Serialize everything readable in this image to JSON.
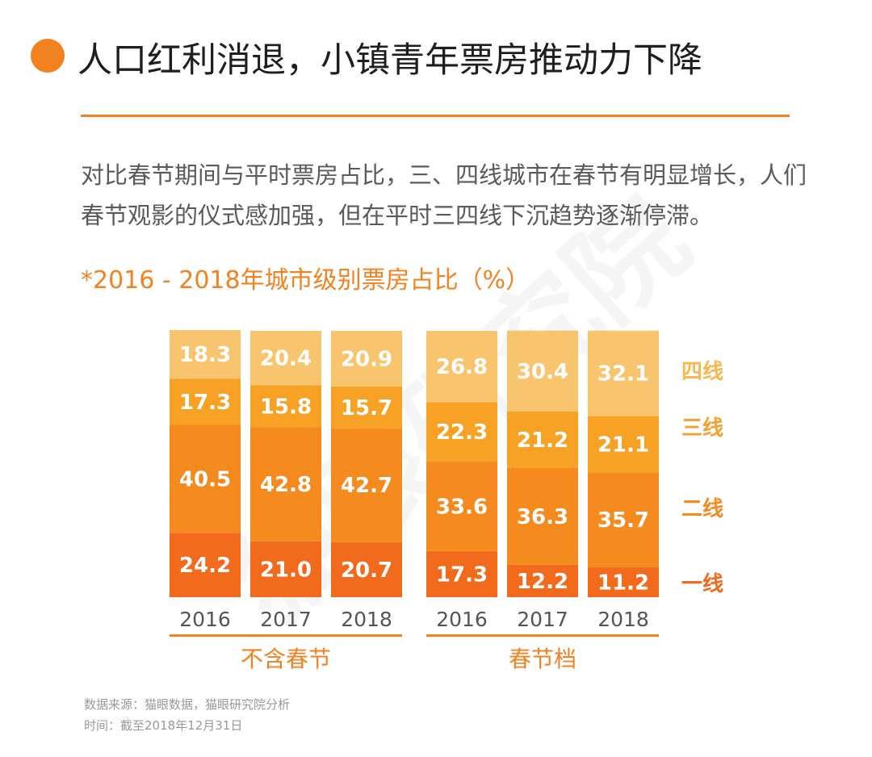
{
  "header": {
    "title": "人口红利消退，小镇青年票房推动力下降",
    "description": "对比春节期间与平时票房占比，三、四线城市在春节有明显增长，人们春节观影的仪式感加强，但在平时三四线下沉趋势逐渐停滞。"
  },
  "colors": {
    "accent": "#F28220",
    "tier1": "#F26B1D",
    "tier2": "#F58A1F",
    "tier3": "#F7A125",
    "tier4": "#F9C46E",
    "legend_tier4": "#F7B850",
    "legend_tier3": "#F5A030"
  },
  "chart_data": {
    "type": "bar",
    "stacked": true,
    "title": "*2016 - 2018年城市级别票房占比（%）",
    "ylim": [
      0,
      100
    ],
    "legend_position": "right",
    "groups": [
      {
        "name": "不含春节",
        "categories": [
          "2016",
          "2017",
          "2018"
        ],
        "series": [
          {
            "name": "一线",
            "values": [
              24.2,
              21.0,
              20.7
            ]
          },
          {
            "name": "二线",
            "values": [
              40.5,
              42.8,
              42.7
            ]
          },
          {
            "name": "三线",
            "values": [
              17.3,
              15.8,
              15.7
            ]
          },
          {
            "name": "四线",
            "values": [
              18.3,
              20.4,
              20.9
            ]
          }
        ]
      },
      {
        "name": "春节档",
        "categories": [
          "2016",
          "2017",
          "2018"
        ],
        "series": [
          {
            "name": "一线",
            "values": [
              17.3,
              12.2,
              11.2
            ]
          },
          {
            "name": "二线",
            "values": [
              33.6,
              36.3,
              35.7
            ]
          },
          {
            "name": "三线",
            "values": [
              22.3,
              21.2,
              21.1
            ]
          },
          {
            "name": "四线",
            "values": [
              26.8,
              30.4,
              32.1
            ]
          }
        ]
      }
    ]
  },
  "watermark": "猫眼研究院",
  "footer": {
    "source": "数据来源：猫眼数据，猫眼研究院分析",
    "time": "时间：截至2018年12月31日"
  }
}
